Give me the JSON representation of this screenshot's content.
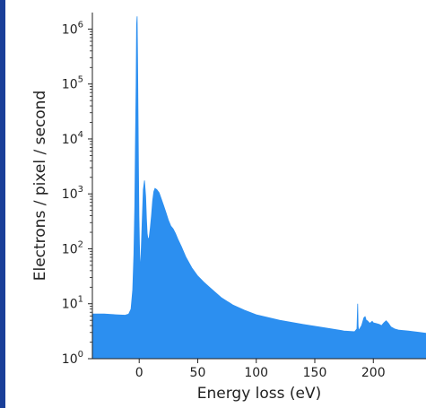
{
  "chart_data": {
    "type": "area",
    "title": "",
    "xlabel": "Energy loss (eV)",
    "ylabel": "Electrons / pixel / second",
    "xlim": [
      -40,
      245
    ],
    "ylim": [
      1,
      2000000
    ],
    "yscale": "log",
    "grid": false,
    "legend": "none",
    "fill_color": "#2c8ff0",
    "x_ticks": [
      0,
      50,
      100,
      150,
      200
    ],
    "y_ticks": [
      {
        "exp": 0,
        "base": "10",
        "sup": "0"
      },
      {
        "exp": 1,
        "base": "10",
        "sup": "1"
      },
      {
        "exp": 2,
        "base": "10",
        "sup": "2"
      },
      {
        "exp": 3,
        "base": "10",
        "sup": "3"
      },
      {
        "exp": 4,
        "base": "10",
        "sup": "4"
      },
      {
        "exp": 5,
        "base": "10",
        "sup": "5"
      },
      {
        "exp": 6,
        "base": "10",
        "sup": "6"
      }
    ],
    "series": [
      {
        "x": [
          -40,
          -30,
          -20,
          -12,
          -9,
          -7,
          -5.5,
          -4.5,
          -3.8,
          -3.2,
          -2.6,
          -2.2,
          -1.8,
          -1.4,
          -1.0,
          -0.6,
          -0.2,
          0.2,
          0.6,
          1.0,
          1.6,
          2.5,
          3.5,
          4.5,
          5.5,
          6.2,
          6.8,
          7.5,
          8.5,
          9.5,
          10.5,
          11.5,
          12.5,
          13.5,
          15,
          17,
          19,
          21,
          23,
          25,
          27,
          29,
          31,
          33,
          36,
          40,
          45,
          50,
          55,
          60,
          70,
          80,
          90,
          100,
          120,
          140,
          160,
          175,
          184,
          186,
          186.6,
          187.0,
          187.4,
          188,
          190,
          192,
          193,
          194,
          195,
          197,
          199,
          200,
          202,
          205,
          207,
          209,
          211,
          213,
          215,
          218,
          222,
          230,
          240,
          245
        ],
        "y": [
          6.5,
          6.5,
          6.3,
          6.2,
          6.5,
          8,
          18,
          80,
          600,
          8000,
          100000,
          1200000,
          1700000,
          300000,
          30000,
          3000,
          400,
          120,
          60,
          45,
          80,
          300,
          1200,
          1750,
          900,
          350,
          190,
          150,
          160,
          240,
          400,
          750,
          1100,
          1260,
          1200,
          1050,
          800,
          600,
          450,
          330,
          260,
          230,
          190,
          150,
          110,
          70,
          45,
          32,
          25,
          20,
          13,
          9.5,
          7.6,
          6.3,
          5.0,
          4.2,
          3.6,
          3.2,
          3.1,
          3.5,
          10,
          4,
          3.3,
          3.4,
          4.0,
          5.6,
          5.8,
          5.0,
          4.9,
          4.4,
          4.8,
          4.5,
          4.4,
          4.2,
          4.0,
          4.5,
          4.9,
          4.4,
          3.8,
          3.5,
          3.3,
          3.2,
          3.0,
          2.9
        ]
      }
    ]
  }
}
